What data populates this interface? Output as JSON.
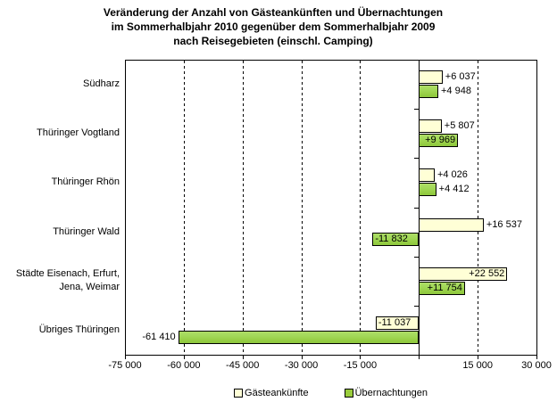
{
  "chart_data": {
    "type": "bar",
    "orientation": "horizontal",
    "title_lines": [
      "Veränderung der Anzahl von Gästeankünften und Übernachtungen",
      "im Sommerhalbjahr 2010 gegenüber dem Sommerhalbjahr 2009",
      "nach Reisegebieten (einschl. Camping)"
    ],
    "categories": [
      {
        "label_lines": [
          "Südharz"
        ]
      },
      {
        "label_lines": [
          "Thüringer Vogtland"
        ]
      },
      {
        "label_lines": [
          "Thüringer Rhön"
        ]
      },
      {
        "label_lines": [
          "Thüringer Wald"
        ]
      },
      {
        "label_lines": [
          "Städte Eisenach, Erfurt,",
          "Jena, Weimar"
        ]
      },
      {
        "label_lines": [
          "Übriges Thüringen"
        ]
      }
    ],
    "series": [
      {
        "name": "Gästeankünfte",
        "color": "#FFFFD6",
        "values": [
          6037,
          5807,
          4026,
          16537,
          22552,
          -11037
        ],
        "value_labels": [
          "+6 037",
          "+5 807",
          "+4 026",
          "+16 537",
          "+22 552",
          "-11 037"
        ],
        "label_placements": [
          "outside",
          "outside",
          "outside",
          "outside",
          "inside",
          "inside"
        ]
      },
      {
        "name": "Übernachtungen",
        "color": "#9ACD3C",
        "values": [
          4948,
          9969,
          4412,
          -11832,
          11754,
          -61410
        ],
        "value_labels": [
          "+4 948",
          "+9 969",
          "+4 412",
          "-11 832",
          "+11 754",
          "-61 410"
        ],
        "label_placements": [
          "outside",
          "inside",
          "outside",
          "inside",
          "inside",
          "outside"
        ]
      }
    ],
    "x_axis": {
      "min": -75000,
      "max": 30000,
      "tick_interval": 15000,
      "ticks": [
        {
          "value": -75000,
          "label": "-75 000"
        },
        {
          "value": -60000,
          "label": "-60 000"
        },
        {
          "value": -45000,
          "label": "-45 000"
        },
        {
          "value": -30000,
          "label": "-30 000"
        },
        {
          "value": -15000,
          "label": "-15 000"
        },
        {
          "value": 0,
          "label": ""
        },
        {
          "value": 15000,
          "label": "15 000"
        },
        {
          "value": 30000,
          "label": "30 000"
        }
      ],
      "gridlines": "vertical-dashed",
      "zero_line": "solid"
    },
    "legend_position": "bottom-center"
  }
}
